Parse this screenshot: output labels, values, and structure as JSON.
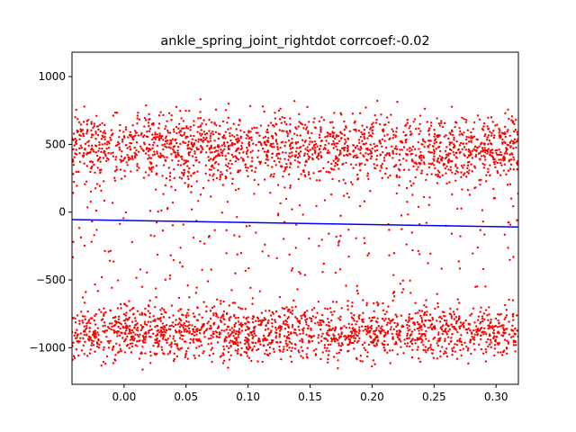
{
  "chart_data": {
    "type": "scatter",
    "title": "ankle_spring_joint_rightdot corrcoef:-0.02",
    "xlabel": "",
    "ylabel": "",
    "xlim": [
      -0.042,
      0.318
    ],
    "ylim": [
      -1270,
      1180
    ],
    "x_ticks": [
      0.0,
      0.05,
      0.1,
      0.15,
      0.2,
      0.25,
      0.3
    ],
    "x_tick_labels": [
      "0.00",
      "0.05",
      "0.10",
      "0.15",
      "0.20",
      "0.25",
      "0.30"
    ],
    "y_ticks": [
      -1000,
      -500,
      0,
      500,
      1000
    ],
    "y_tick_labels": [
      "−1000",
      "−500",
      "0",
      "500",
      "1000"
    ],
    "grid": false,
    "legend": "none",
    "series": [
      {
        "kind": "scatter",
        "color": "#ff0000",
        "description_points": "dense point cloud in two bands",
        "bands": [
          {
            "y_center": 480,
            "y_spread": 260,
            "x_range": [
              -0.042,
              0.318
            ]
          },
          {
            "y_center": -880,
            "y_spread": 220,
            "x_range": [
              -0.042,
              0.318
            ]
          }
        ],
        "sample_points": [
          [
            0.0,
            560
          ],
          [
            0.03,
            420
          ],
          [
            0.04,
            610
          ],
          [
            0.05,
            380
          ],
          [
            0.06,
            520
          ],
          [
            0.1,
            560
          ],
          [
            0.12,
            640
          ],
          [
            0.13,
            330
          ],
          [
            0.15,
            520
          ],
          [
            0.17,
            340
          ],
          [
            0.2,
            600
          ],
          [
            0.21,
            380
          ],
          [
            0.23,
            620
          ],
          [
            0.25,
            380
          ],
          [
            0.28,
            560
          ],
          [
            0.0,
            -800
          ],
          [
            0.03,
            -900
          ],
          [
            0.05,
            -760
          ],
          [
            0.07,
            -860
          ],
          [
            0.09,
            -820
          ],
          [
            0.1,
            -900
          ],
          [
            0.11,
            -800
          ],
          [
            0.13,
            -860
          ],
          [
            0.16,
            -800
          ],
          [
            0.19,
            -760
          ],
          [
            0.21,
            -800
          ],
          [
            0.24,
            -900
          ],
          [
            0.26,
            -820
          ],
          [
            0.29,
            -900
          ],
          [
            0.31,
            -960
          ]
        ]
      },
      {
        "kind": "line",
        "color": "#0000ff",
        "x": [
          -0.042,
          0.318
        ],
        "y": [
          -55,
          -110
        ]
      }
    ]
  }
}
